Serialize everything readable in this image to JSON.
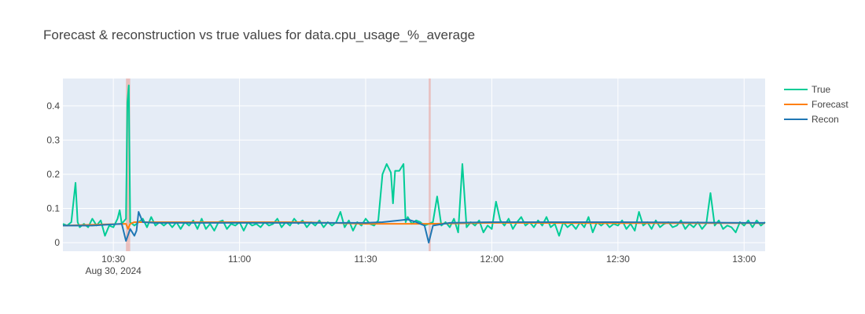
{
  "chart_data": {
    "type": "line",
    "title": "Forecast & reconstruction vs true values for data.cpu_usage_%_average",
    "xlabel": "",
    "ylabel": "",
    "x_range": [
      "2024-08-30 10:18",
      "2024-08-30 13:05"
    ],
    "ylim": [
      -0.025,
      0.48
    ],
    "y_ticks": [
      {
        "value": 0,
        "label": "0"
      },
      {
        "value": 0.1,
        "label": "0.1"
      },
      {
        "value": 0.2,
        "label": "0.2"
      },
      {
        "value": 0.3,
        "label": "0.3"
      },
      {
        "value": 0.4,
        "label": "0.4"
      }
    ],
    "x_ticks": [
      {
        "time": "2024-08-30 10:30",
        "label": "10:30",
        "sublabel": "Aug 30, 2024"
      },
      {
        "time": "2024-08-30 11:00",
        "label": "11:00"
      },
      {
        "time": "2024-08-30 11:30",
        "label": "11:30"
      },
      {
        "time": "2024-08-30 12:00",
        "label": "12:00"
      },
      {
        "time": "2024-08-30 12:30",
        "label": "12:30"
      },
      {
        "time": "2024-08-30 13:00",
        "label": "13:00"
      }
    ],
    "grid": true,
    "legend_position": "top-right",
    "anomaly_regions": [
      {
        "start": "2024-08-30 10:33",
        "end": "2024-08-30 10:34"
      },
      {
        "start": "2024-08-30 11:45",
        "end": "2024-08-30 11:45"
      }
    ],
    "series": [
      {
        "name": "True",
        "color": "#00cc96",
        "points": [
          [
            "2024-08-30 10:18",
            0.055
          ],
          [
            "2024-08-30 10:19",
            0.05
          ],
          [
            "2024-08-30 10:20",
            0.06
          ],
          [
            "2024-08-30 10:21",
            0.175
          ],
          [
            "2024-08-30 10:21:30",
            0.06
          ],
          [
            "2024-08-30 10:22",
            0.045
          ],
          [
            "2024-08-30 10:23",
            0.055
          ],
          [
            "2024-08-30 10:24",
            0.045
          ],
          [
            "2024-08-30 10:25",
            0.07
          ],
          [
            "2024-08-30 10:26",
            0.05
          ],
          [
            "2024-08-30 10:27",
            0.065
          ],
          [
            "2024-08-30 10:28",
            0.02
          ],
          [
            "2024-08-30 10:29",
            0.05
          ],
          [
            "2024-08-30 10:30",
            0.045
          ],
          [
            "2024-08-30 10:31",
            0.07
          ],
          [
            "2024-08-30 10:31:30",
            0.095
          ],
          [
            "2024-08-30 10:32",
            0.055
          ],
          [
            "2024-08-30 10:33",
            0.07
          ],
          [
            "2024-08-30 10:33:20",
            0.41
          ],
          [
            "2024-08-30 10:33:40",
            0.46
          ],
          [
            "2024-08-30 10:34",
            0.06
          ],
          [
            "2024-08-30 10:35",
            0.05
          ],
          [
            "2024-08-30 10:36",
            0.06
          ],
          [
            "2024-08-30 10:37",
            0.07
          ],
          [
            "2024-08-30 10:38",
            0.045
          ],
          [
            "2024-08-30 10:39",
            0.075
          ],
          [
            "2024-08-30 10:40",
            0.05
          ],
          [
            "2024-08-30 10:41",
            0.06
          ],
          [
            "2024-08-30 10:42",
            0.05
          ],
          [
            "2024-08-30 10:43",
            0.06
          ],
          [
            "2024-08-30 10:44",
            0.045
          ],
          [
            "2024-08-30 10:45",
            0.06
          ],
          [
            "2024-08-30 10:46",
            0.04
          ],
          [
            "2024-08-30 10:47",
            0.06
          ],
          [
            "2024-08-30 10:48",
            0.05
          ],
          [
            "2024-08-30 10:49",
            0.065
          ],
          [
            "2024-08-30 10:50",
            0.04
          ],
          [
            "2024-08-30 10:51",
            0.07
          ],
          [
            "2024-08-30 10:52",
            0.04
          ],
          [
            "2024-08-30 10:53",
            0.055
          ],
          [
            "2024-08-30 10:54",
            0.035
          ],
          [
            "2024-08-30 10:55",
            0.06
          ],
          [
            "2024-08-30 10:56",
            0.065
          ],
          [
            "2024-08-30 10:57",
            0.04
          ],
          [
            "2024-08-30 10:58",
            0.055
          ],
          [
            "2024-08-30 10:59",
            0.05
          ],
          [
            "2024-08-30 11:00",
            0.06
          ],
          [
            "2024-08-30 11:01",
            0.035
          ],
          [
            "2024-08-30 11:02",
            0.06
          ],
          [
            "2024-08-30 11:03",
            0.05
          ],
          [
            "2024-08-30 11:04",
            0.055
          ],
          [
            "2024-08-30 11:05",
            0.045
          ],
          [
            "2024-08-30 11:06",
            0.06
          ],
          [
            "2024-08-30 11:07",
            0.05
          ],
          [
            "2024-08-30 11:08",
            0.055
          ],
          [
            "2024-08-30 11:09",
            0.07
          ],
          [
            "2024-08-30 11:10",
            0.045
          ],
          [
            "2024-08-30 11:11",
            0.06
          ],
          [
            "2024-08-30 11:12",
            0.05
          ],
          [
            "2024-08-30 11:13",
            0.07
          ],
          [
            "2024-08-30 11:14",
            0.055
          ],
          [
            "2024-08-30 11:15",
            0.065
          ],
          [
            "2024-08-30 11:16",
            0.045
          ],
          [
            "2024-08-30 11:17",
            0.06
          ],
          [
            "2024-08-30 11:18",
            0.05
          ],
          [
            "2024-08-30 11:19",
            0.065
          ],
          [
            "2024-08-30 11:20",
            0.045
          ],
          [
            "2024-08-30 11:21",
            0.06
          ],
          [
            "2024-08-30 11:22",
            0.05
          ],
          [
            "2024-08-30 11:23",
            0.06
          ],
          [
            "2024-08-30 11:24",
            0.09
          ],
          [
            "2024-08-30 11:25",
            0.045
          ],
          [
            "2024-08-30 11:26",
            0.065
          ],
          [
            "2024-08-30 11:27",
            0.035
          ],
          [
            "2024-08-30 11:28",
            0.06
          ],
          [
            "2024-08-30 11:29",
            0.05
          ],
          [
            "2024-08-30 11:30",
            0.07
          ],
          [
            "2024-08-30 11:31",
            0.055
          ],
          [
            "2024-08-30 11:32",
            0.05
          ],
          [
            "2024-08-30 11:33",
            0.065
          ],
          [
            "2024-08-30 11:34",
            0.2
          ],
          [
            "2024-08-30 11:35",
            0.23
          ],
          [
            "2024-08-30 11:36",
            0.205
          ],
          [
            "2024-08-30 11:36:30",
            0.115
          ],
          [
            "2024-08-30 11:37",
            0.21
          ],
          [
            "2024-08-30 11:38",
            0.21
          ],
          [
            "2024-08-30 11:39",
            0.23
          ],
          [
            "2024-08-30 11:39:30",
            0.06
          ],
          [
            "2024-08-30 11:40",
            0.075
          ],
          [
            "2024-08-30 11:41",
            0.055
          ],
          [
            "2024-08-30 11:42",
            0.065
          ],
          [
            "2024-08-30 11:43",
            0.06
          ],
          [
            "2024-08-30 11:44",
            0.05
          ],
          [
            "2024-08-30 11:45",
            0.055
          ],
          [
            "2024-08-30 11:46",
            0.06
          ],
          [
            "2024-08-30 11:47",
            0.135
          ],
          [
            "2024-08-30 11:48",
            0.05
          ],
          [
            "2024-08-30 11:49",
            0.06
          ],
          [
            "2024-08-30 11:50",
            0.045
          ],
          [
            "2024-08-30 11:51",
            0.07
          ],
          [
            "2024-08-30 11:52",
            0.03
          ],
          [
            "2024-08-30 11:53",
            0.23
          ],
          [
            "2024-08-30 11:54",
            0.045
          ],
          [
            "2024-08-30 11:55",
            0.06
          ],
          [
            "2024-08-30 11:56",
            0.05
          ],
          [
            "2024-08-30 11:57",
            0.065
          ],
          [
            "2024-08-30 11:58",
            0.03
          ],
          [
            "2024-08-30 11:59",
            0.05
          ],
          [
            "2024-08-30 12:00",
            0.04
          ],
          [
            "2024-08-30 12:01",
            0.12
          ],
          [
            "2024-08-30 12:02",
            0.065
          ],
          [
            "2024-08-30 12:03",
            0.05
          ],
          [
            "2024-08-30 12:04",
            0.07
          ],
          [
            "2024-08-30 12:05",
            0.04
          ],
          [
            "2024-08-30 12:06",
            0.06
          ],
          [
            "2024-08-30 12:07",
            0.075
          ],
          [
            "2024-08-30 12:08",
            0.05
          ],
          [
            "2024-08-30 12:09",
            0.06
          ],
          [
            "2024-08-30 12:10",
            0.045
          ],
          [
            "2024-08-30 12:11",
            0.065
          ],
          [
            "2024-08-30 12:12",
            0.05
          ],
          [
            "2024-08-30 12:13",
            0.075
          ],
          [
            "2024-08-30 12:14",
            0.045
          ],
          [
            "2024-08-30 12:15",
            0.055
          ],
          [
            "2024-08-30 12:16",
            0.02
          ],
          [
            "2024-08-30 12:17",
            0.06
          ],
          [
            "2024-08-30 12:18",
            0.045
          ],
          [
            "2024-08-30 12:19",
            0.055
          ],
          [
            "2024-08-30 12:20",
            0.04
          ],
          [
            "2024-08-30 12:21",
            0.06
          ],
          [
            "2024-08-30 12:22",
            0.045
          ],
          [
            "2024-08-30 12:23",
            0.075
          ],
          [
            "2024-08-30 12:24",
            0.03
          ],
          [
            "2024-08-30 12:25",
            0.06
          ],
          [
            "2024-08-30 12:26",
            0.05
          ],
          [
            "2024-08-30 12:27",
            0.06
          ],
          [
            "2024-08-30 12:28",
            0.045
          ],
          [
            "2024-08-30 12:29",
            0.055
          ],
          [
            "2024-08-30 12:30",
            0.05
          ],
          [
            "2024-08-30 12:31",
            0.065
          ],
          [
            "2024-08-30 12:32",
            0.04
          ],
          [
            "2024-08-30 12:33",
            0.055
          ],
          [
            "2024-08-30 12:34",
            0.035
          ],
          [
            "2024-08-30 12:35",
            0.09
          ],
          [
            "2024-08-30 12:36",
            0.05
          ],
          [
            "2024-08-30 12:37",
            0.06
          ],
          [
            "2024-08-30 12:38",
            0.04
          ],
          [
            "2024-08-30 12:39",
            0.065
          ],
          [
            "2024-08-30 12:40",
            0.045
          ],
          [
            "2024-08-30 12:41",
            0.055
          ],
          [
            "2024-08-30 12:42",
            0.06
          ],
          [
            "2024-08-30 12:43",
            0.045
          ],
          [
            "2024-08-30 12:44",
            0.05
          ],
          [
            "2024-08-30 12:45",
            0.065
          ],
          [
            "2024-08-30 12:46",
            0.04
          ],
          [
            "2024-08-30 12:47",
            0.055
          ],
          [
            "2024-08-30 12:48",
            0.045
          ],
          [
            "2024-08-30 12:49",
            0.06
          ],
          [
            "2024-08-30 12:50",
            0.04
          ],
          [
            "2024-08-30 12:51",
            0.055
          ],
          [
            "2024-08-30 12:52",
            0.145
          ],
          [
            "2024-08-30 12:53",
            0.05
          ],
          [
            "2024-08-30 12:54",
            0.065
          ],
          [
            "2024-08-30 12:55",
            0.04
          ],
          [
            "2024-08-30 12:56",
            0.05
          ],
          [
            "2024-08-30 12:57",
            0.045
          ],
          [
            "2024-08-30 12:58",
            0.03
          ],
          [
            "2024-08-30 12:59",
            0.06
          ],
          [
            "2024-08-30 13:00",
            0.05
          ],
          [
            "2024-08-30 13:01",
            0.065
          ],
          [
            "2024-08-30 13:02",
            0.045
          ],
          [
            "2024-08-30 13:03",
            0.065
          ],
          [
            "2024-08-30 13:04",
            0.05
          ],
          [
            "2024-08-30 13:05",
            0.06
          ]
        ]
      },
      {
        "name": "Forecast",
        "color": "#ff7f0e",
        "points": [
          [
            "2024-08-30 10:18",
            0.05
          ],
          [
            "2024-08-30 10:33",
            0.055
          ],
          [
            "2024-08-30 10:33:30",
            0.04
          ],
          [
            "2024-08-30 10:34",
            0.055
          ],
          [
            "2024-08-30 10:35",
            0.06
          ],
          [
            "2024-08-30 11:15",
            0.06
          ],
          [
            "2024-08-30 11:30",
            0.055
          ],
          [
            "2024-08-30 11:45",
            0.055
          ],
          [
            "2024-08-30 12:00",
            0.058
          ],
          [
            "2024-08-30 12:30",
            0.057
          ],
          [
            "2024-08-30 13:05",
            0.057
          ]
        ]
      },
      {
        "name": "Recon",
        "color": "#1f77b4",
        "points": [
          [
            "2024-08-30 10:18",
            0.05
          ],
          [
            "2024-08-30 10:25",
            0.05
          ],
          [
            "2024-08-30 10:32",
            0.055
          ],
          [
            "2024-08-30 10:33",
            0.005
          ],
          [
            "2024-08-30 10:34",
            0.04
          ],
          [
            "2024-08-30 10:35",
            0.02
          ],
          [
            "2024-08-30 10:35:30",
            0.035
          ],
          [
            "2024-08-30 10:36",
            0.09
          ],
          [
            "2024-08-30 10:37",
            0.06
          ],
          [
            "2024-08-30 10:40",
            0.058
          ],
          [
            "2024-08-30 11:00",
            0.058
          ],
          [
            "2024-08-30 11:20",
            0.058
          ],
          [
            "2024-08-30 11:30",
            0.058
          ],
          [
            "2024-08-30 11:34",
            0.06
          ],
          [
            "2024-08-30 11:38",
            0.065
          ],
          [
            "2024-08-30 11:40",
            0.068
          ],
          [
            "2024-08-30 11:42",
            0.06
          ],
          [
            "2024-08-30 11:44",
            0.05
          ],
          [
            "2024-08-30 11:45",
            0.0
          ],
          [
            "2024-08-30 11:46",
            0.05
          ],
          [
            "2024-08-30 11:50",
            0.058
          ],
          [
            "2024-08-30 12:00",
            0.06
          ],
          [
            "2024-08-30 12:30",
            0.06
          ],
          [
            "2024-08-30 13:00",
            0.058
          ],
          [
            "2024-08-30 13:05",
            0.058
          ]
        ]
      }
    ]
  }
}
